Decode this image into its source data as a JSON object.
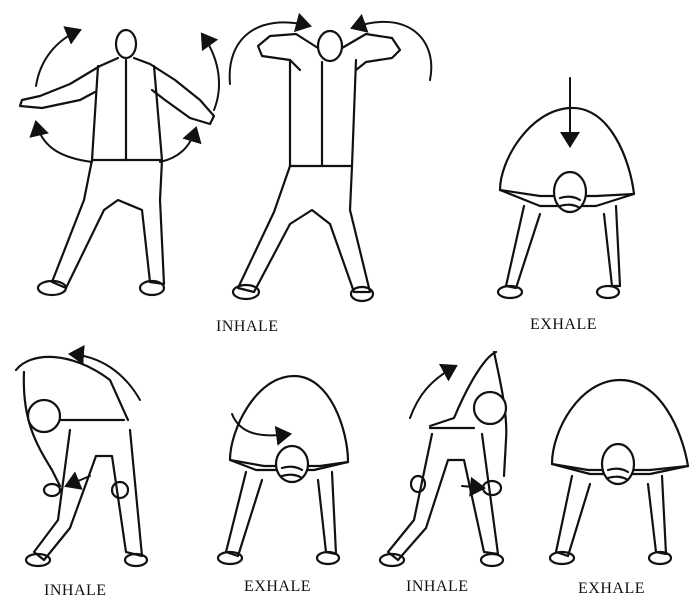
{
  "colors": {
    "ink": "#111111",
    "paper": "#ffffff"
  },
  "labels": {
    "row1_inhale": "INHALE",
    "row1_exhale": "EXHALE",
    "row2_inhale_left": "INHALE",
    "row2_exhale_left": "EXHALE",
    "row2_inhale_right": "INHALE",
    "row2_exhale_right": "EXHALE"
  }
}
